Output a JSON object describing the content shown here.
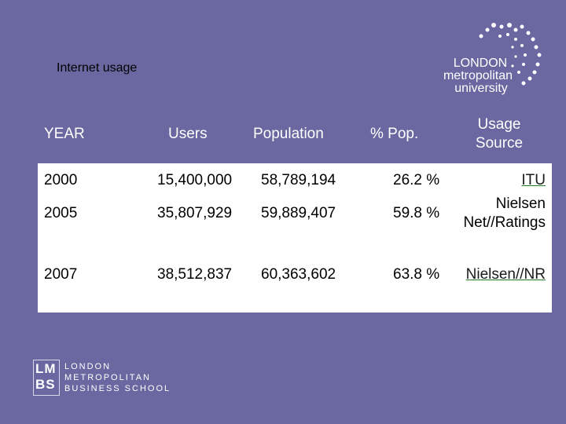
{
  "title": "Internet usage",
  "headers": {
    "year": "YEAR",
    "users": "Users",
    "population": "Population",
    "pct": "% Pop.",
    "source_line1": "Usage",
    "source_line2": "Source"
  },
  "rows": [
    {
      "year": "2000",
      "users": "15,400,000",
      "population": "58,789,194",
      "pct": "26.2 %",
      "source": "ITU"
    },
    {
      "year": "2005",
      "users": "35,807,929",
      "population": "59,889,407",
      "pct": "59.8 %",
      "source_line1": "Nielsen",
      "source_line2": "Net//Ratings"
    },
    {
      "year": "2007",
      "users": "38,512,837",
      "population": "60,363,602",
      "pct": "63.8 %",
      "source": "Nielsen//NR"
    }
  ],
  "logo_lmu": {
    "line1": "LONDON",
    "line2": "metropolitan",
    "line3": "university"
  },
  "logo_lmbs": {
    "letters_top": "LM",
    "letters_bottom": "BS",
    "line1": "LONDON",
    "line2": "METROPOLITAN",
    "line3": "BUSINESS SCHOOL"
  },
  "colors": {
    "background": "#6b67a0",
    "table_bg": "#ffffff",
    "header_text": "#ffffff"
  }
}
